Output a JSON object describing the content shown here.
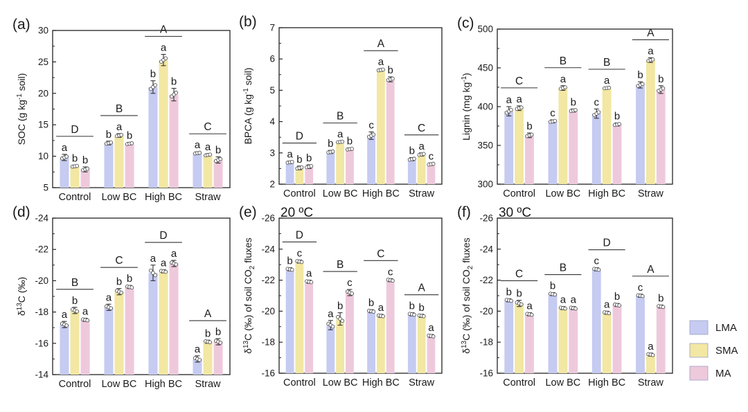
{
  "legend": [
    {
      "label": "LMA",
      "color": "#c5cbf1"
    },
    {
      "label": "SMA",
      "color": "#f2e7a3"
    },
    {
      "label": "MA",
      "color": "#eec9dc"
    }
  ],
  "chart_data": [
    {
      "type": "bar",
      "panel": "(a)",
      "ylabel": "SOC (g kg<sup>-1</sup> soil)",
      "ylim": [
        5,
        30
      ],
      "yticks": [
        5,
        10,
        15,
        20,
        25,
        30
      ],
      "reversed": false,
      "categories": [
        "Control",
        "Low BC",
        "High BC",
        "Straw"
      ],
      "series": [
        {
          "name": "LMA",
          "values": [
            9.8,
            12.1,
            21.0,
            10.5
          ],
          "err": [
            0.5,
            0.3,
            1.0,
            0.2
          ],
          "sig": [
            "a",
            "b",
            "b",
            "a"
          ]
        },
        {
          "name": "SMA",
          "values": [
            8.4,
            13.3,
            25.3,
            10.2
          ],
          "err": [
            0.2,
            0.3,
            0.9,
            0.2
          ],
          "sig": [
            "b",
            "a",
            "a",
            "a"
          ]
        },
        {
          "name": "MA",
          "values": [
            7.9,
            12.0,
            19.8,
            9.4
          ],
          "err": [
            0.4,
            0.2,
            1.0,
            0.5
          ],
          "sig": [
            "b",
            "b",
            "b",
            "b"
          ]
        }
      ],
      "group_sig": [
        "D",
        "B",
        "A",
        "C"
      ]
    },
    {
      "type": "bar",
      "panel": "(b)",
      "ylabel": "BPCA (g kg<sup>-1</sup> soil)",
      "ylim": [
        2,
        7
      ],
      "yticks": [
        2,
        3,
        4,
        5,
        6,
        7
      ],
      "reversed": false,
      "categories": [
        "Control",
        "Low BC",
        "High BC",
        "Straw"
      ],
      "series": [
        {
          "name": "LMA",
          "values": [
            2.7,
            3.03,
            3.55,
            2.8
          ],
          "err": [
            0.04,
            0.05,
            0.12,
            0.05
          ],
          "sig": [
            "a",
            "b",
            "c",
            "b"
          ]
        },
        {
          "name": "SMA",
          "values": [
            2.52,
            3.35,
            5.65,
            2.95
          ],
          "err": [
            0.06,
            0.03,
            0.04,
            0.05
          ],
          "sig": [
            "b",
            "a",
            "a",
            "a"
          ]
        },
        {
          "name": "MA",
          "values": [
            2.56,
            3.12,
            5.35,
            2.64
          ],
          "err": [
            0.06,
            0.04,
            0.08,
            0.04
          ],
          "sig": [
            "b",
            "b",
            "b",
            "c"
          ]
        }
      ],
      "group_sig": [
        "D",
        "B",
        "A",
        "C"
      ]
    },
    {
      "type": "bar",
      "panel": "(c)",
      "ylabel": "Lignin (mg kg<sup>-1</sup>)",
      "ylim": [
        300,
        500
      ],
      "yticks": [
        300,
        350,
        400,
        450,
        500
      ],
      "reversed": false,
      "categories": [
        "Control",
        "Low BC",
        "High BC",
        "Straw"
      ],
      "series": [
        {
          "name": "LMA",
          "values": [
            394,
            381,
            391,
            428
          ],
          "err": [
            6,
            2,
            6,
            4
          ],
          "sig": [
            "a",
            "c",
            "c",
            "b"
          ]
        },
        {
          "name": "SMA",
          "values": [
            398,
            424,
            424,
            460
          ],
          "err": [
            3,
            3,
            1,
            3
          ],
          "sig": [
            "a",
            "a",
            "a",
            "a"
          ]
        },
        {
          "name": "MA",
          "values": [
            363,
            395,
            377,
            422
          ],
          "err": [
            3,
            2,
            2,
            5
          ],
          "sig": [
            "b",
            "b",
            "b",
            "b"
          ]
        }
      ],
      "group_sig": [
        "C",
        "B",
        "B",
        "A"
      ]
    },
    {
      "type": "bar",
      "panel": "(d)",
      "ylabel": "δ<sup>13</sup>C (‰)",
      "ylim": [
        -14,
        -24
      ],
      "yticks": [
        -14,
        -16,
        -18,
        -20,
        -22,
        -24
      ],
      "reversed": true,
      "categories": [
        "Control",
        "Low BC",
        "High BC",
        "Straw"
      ],
      "series": [
        {
          "name": "LMA",
          "values": [
            -17.2,
            -18.3,
            -20.5,
            -15.0
          ],
          "err": [
            0.2,
            0.2,
            0.5,
            0.2
          ],
          "sig": [
            "a",
            "a",
            "a",
            "a"
          ]
        },
        {
          "name": "SMA",
          "values": [
            -18.1,
            -19.3,
            -20.6,
            -16.1
          ],
          "err": [
            0.2,
            0.2,
            0.1,
            0.1
          ],
          "sig": [
            "b",
            "b",
            "a",
            "b"
          ]
        },
        {
          "name": "MA",
          "values": [
            -17.5,
            -19.6,
            -21.1,
            -16.1
          ],
          "err": [
            0.1,
            0.1,
            0.2,
            0.2
          ],
          "sig": [
            "a",
            "b",
            "a",
            "b"
          ]
        }
      ],
      "group_sig": [
        "B",
        "C",
        "D",
        "A"
      ]
    },
    {
      "type": "bar",
      "panel": "(e)",
      "subtitle": "20 ºC",
      "ylabel": "δ<sup>13</sup>C (‰) of soil CO<sub>2</sub> fluxes",
      "ylim": [
        -16,
        -26
      ],
      "yticks": [
        -16,
        -18,
        -20,
        -22,
        -24,
        -26
      ],
      "reversed": true,
      "categories": [
        "Control",
        "Low BC",
        "High BC",
        "Straw"
      ],
      "series": [
        {
          "name": "LMA",
          "values": [
            -22.7,
            -19.1,
            -20.0,
            -19.8
          ],
          "err": [
            0.1,
            0.3,
            0.1,
            0.1
          ],
          "sig": [
            "b",
            "a",
            "b",
            "b"
          ]
        },
        {
          "name": "SMA",
          "values": [
            -23.2,
            -19.5,
            -19.7,
            -19.7
          ],
          "err": [
            0.1,
            0.4,
            0.1,
            0.1
          ],
          "sig": [
            "c",
            "b",
            "a",
            "b"
          ]
        },
        {
          "name": "MA",
          "values": [
            -21.9,
            -21.2,
            -22.0,
            -18.4
          ],
          "err": [
            0.1,
            0.2,
            0.1,
            0.1
          ],
          "sig": [
            "a",
            "c",
            "c",
            "a"
          ]
        }
      ],
      "group_sig": [
        "D",
        "B",
        "C",
        "A"
      ]
    },
    {
      "type": "bar",
      "panel": "(f)",
      "subtitle": "30 ºC",
      "ylabel": "δ<sup>13</sup>C (‰) of soil CO<sub>2</sub> fluxes",
      "ylim": [
        -16,
        -26
      ],
      "yticks": [
        -16,
        -18,
        -20,
        -22,
        -24,
        -26
      ],
      "reversed": true,
      "categories": [
        "Control",
        "Low BC",
        "High BC",
        "Straw"
      ],
      "series": [
        {
          "name": "LMA",
          "values": [
            -20.7,
            -21.1,
            -22.7,
            -21.0
          ],
          "err": [
            0.1,
            0.1,
            0.1,
            0.1
          ],
          "sig": [
            "b",
            "b",
            "c",
            "c"
          ]
        },
        {
          "name": "SMA",
          "values": [
            -20.5,
            -20.2,
            -19.9,
            -17.2
          ],
          "err": [
            0.2,
            0.1,
            0.1,
            0.1
          ],
          "sig": [
            "b",
            "a",
            "a",
            "a"
          ]
        },
        {
          "name": "MA",
          "values": [
            -19.8,
            -20.2,
            -20.4,
            -20.3
          ],
          "err": [
            0.1,
            0.1,
            0.1,
            0.1
          ],
          "sig": [
            "a",
            "a",
            "b",
            "b"
          ]
        }
      ],
      "group_sig": [
        "C",
        "B",
        "D",
        "A"
      ]
    }
  ]
}
